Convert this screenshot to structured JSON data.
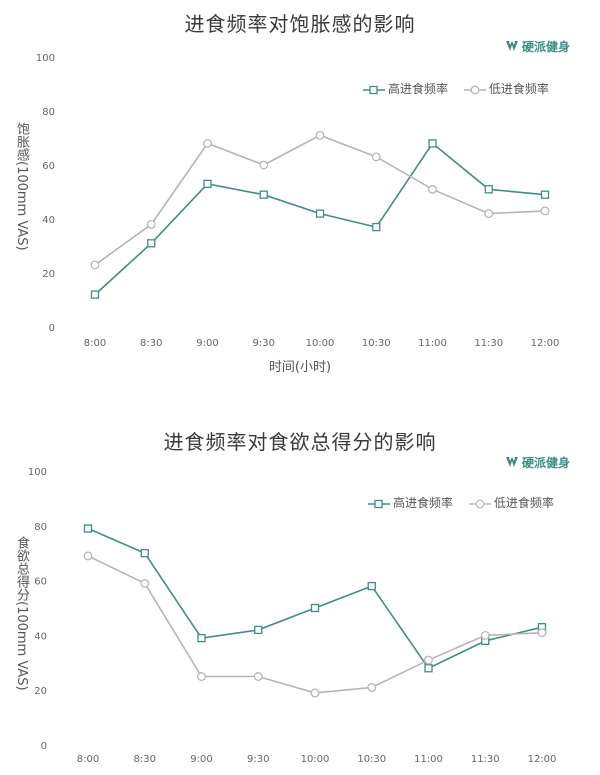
{
  "chart_data": [
    {
      "type": "line",
      "title": "进食频率对饱胀感的影响",
      "brand": "硬派健身",
      "xlabel": "时间(小时)",
      "ylabel": "饱胀感(100mm VAS)",
      "categories": [
        "8:00",
        "8:30",
        "9:00",
        "9:30",
        "10:00",
        "10:30",
        "11:00",
        "11:30",
        "12:00"
      ],
      "yticks": [
        "0",
        "20",
        "40",
        "60",
        "80",
        "100"
      ],
      "ylim": [
        0,
        100
      ],
      "grid": false,
      "legend_position": "top-right",
      "series": [
        {
          "name": "高进食频率",
          "marker": "square",
          "color": "#3d8f86",
          "values": [
            12,
            31,
            53,
            49,
            42,
            37,
            68,
            51,
            49
          ]
        },
        {
          "name": "低进食频率",
          "marker": "circle",
          "color": "#b5b5b5",
          "values": [
            23,
            38,
            68,
            60,
            71,
            63,
            51,
            42,
            43
          ]
        }
      ]
    },
    {
      "type": "line",
      "title": "进食频率对食欲总得分的影响",
      "brand": "硬派健身",
      "xlabel": "",
      "ylabel": "食欲总得分(100mm VAS)",
      "categories": [
        "8:00",
        "8:30",
        "9:00",
        "9:30",
        "10:00",
        "10:30",
        "11:00",
        "11:30",
        "12:00"
      ],
      "yticks": [
        "0",
        "20",
        "40",
        "60",
        "80",
        "100"
      ],
      "ylim": [
        0,
        100
      ],
      "grid": false,
      "legend_position": "top-right",
      "series": [
        {
          "name": "高进食频率",
          "marker": "square",
          "color": "#3d8f86",
          "values": [
            79,
            70,
            39,
            42,
            50,
            58,
            28,
            38,
            43
          ]
        },
        {
          "name": "低进食频率",
          "marker": "circle",
          "color": "#b5b5b5",
          "values": [
            69,
            59,
            25,
            25,
            19,
            21,
            31,
            40,
            41
          ]
        }
      ]
    }
  ]
}
